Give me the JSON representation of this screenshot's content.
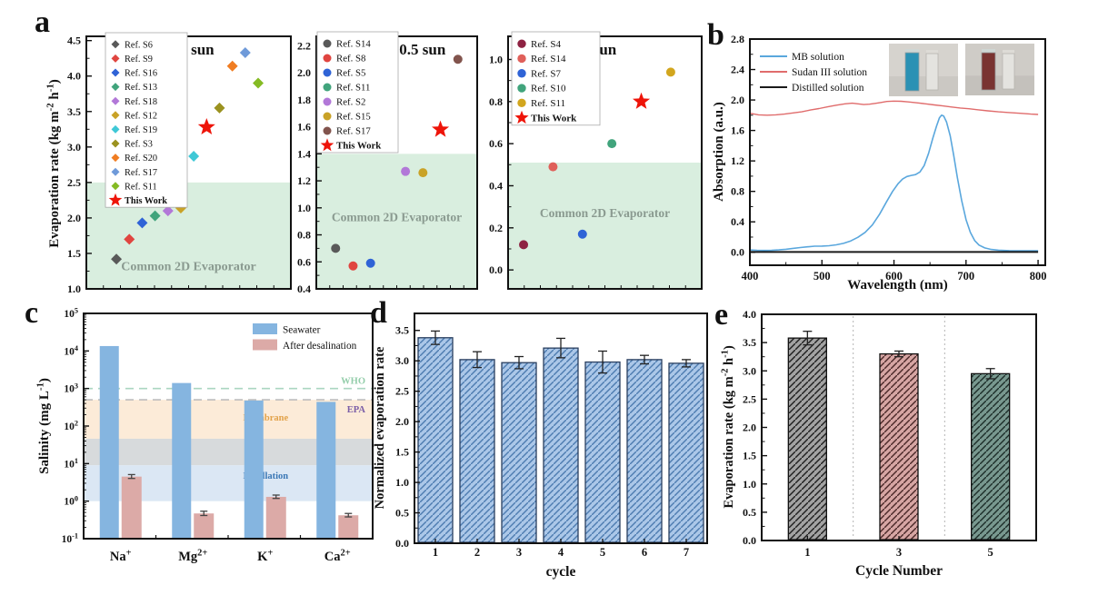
{
  "panel_letters": {
    "a": "a",
    "b": "b",
    "c": "c",
    "d": "d",
    "e": "e"
  },
  "chart_data": [
    {
      "id": "a1",
      "type": "scatter",
      "title": "1 sun",
      "ylabel_parts": [
        {
          "t": "Evaporation rate (kg m"
        },
        {
          "sup": "-2"
        },
        {
          "t": " h"
        },
        {
          "sup": "-1"
        },
        {
          "t": ")"
        }
      ],
      "ylim": [
        1.0,
        4.56
      ],
      "yticks": {
        "min": 1.0,
        "max": 4.5,
        "step": 0.5,
        "minor": 0.25,
        "decimals": 1
      },
      "marker": "diamond",
      "region": {
        "label": "Common 2D Evaporator",
        "top": 2.5,
        "color": "#d9eedf",
        "text_color": "#8a9a90",
        "label_y": 1.26,
        "label_size": 14
      },
      "points": [
        {
          "name": "Ref. S6",
          "color": "#595959",
          "y": 1.42
        },
        {
          "name": "Ref. S9",
          "color": "#e04540",
          "y": 1.7
        },
        {
          "name": "Ref. S16",
          "color": "#2f63d6",
          "y": 1.93
        },
        {
          "name": "Ref. S13",
          "color": "#41a47c",
          "y": 2.03
        },
        {
          "name": "Ref. S18",
          "color": "#b278d8",
          "y": 2.1
        },
        {
          "name": "Ref. S12",
          "color": "#c9a227",
          "y": 2.14
        },
        {
          "name": "Ref. S19",
          "color": "#3fc8d6",
          "y": 2.87
        },
        {
          "name": "This Work",
          "color": "#ee1409",
          "y": 3.28,
          "marker": "star"
        },
        {
          "name": "Ref. S3",
          "color": "#9b9220",
          "y": 3.55
        },
        {
          "name": "Ref. S20",
          "color": "#f07d22",
          "y": 4.14
        },
        {
          "name": "Ref. S17",
          "color": "#6f9ad9",
          "y": 4.33
        },
        {
          "name": "Ref. S11",
          "color": "#85bb24",
          "y": 3.9
        }
      ],
      "legend_order": [
        0,
        1,
        2,
        3,
        4,
        5,
        6,
        8,
        9,
        10,
        11,
        7
      ]
    },
    {
      "id": "a2",
      "type": "scatter",
      "title": "0.5 sun",
      "ylim": [
        0.4,
        2.27
      ],
      "yticks": {
        "min": 0.4,
        "max": 2.2,
        "step": 0.2,
        "minor": 0.1,
        "decimals": 1
      },
      "marker": "circle",
      "region": {
        "label": "Common 2D Evaporator",
        "top": 1.4,
        "color": "#d9eedf",
        "text_color": "#8a9a90",
        "label_y": 0.9,
        "label_size": 13.5
      },
      "points": [
        {
          "name": "Ref. S14",
          "color": "#595959",
          "y": 0.7
        },
        {
          "name": "Ref. S8",
          "color": "#e04540",
          "y": 0.57
        },
        {
          "name": "Ref. S5",
          "color": "#2f63d6",
          "y": 0.59
        },
        {
          "name": "Ref. S11",
          "color": "#41a47c",
          "y": 1.74
        },
        {
          "name": "Ref. S2",
          "color": "#b278d8",
          "y": 1.27
        },
        {
          "name": "Ref. S15",
          "color": "#c9a227",
          "y": 1.26
        },
        {
          "name": "This Work",
          "color": "#ee1409",
          "y": 1.58,
          "marker": "star"
        },
        {
          "name": "Ref. S17",
          "color": "#82544d",
          "y": 2.1
        }
      ],
      "legend_order": [
        0,
        1,
        2,
        3,
        4,
        5,
        7,
        6
      ]
    },
    {
      "id": "a3",
      "type": "scatter",
      "title": "0 sun",
      "ylim": [
        -0.09,
        1.11
      ],
      "yticks": {
        "min": 0.0,
        "max": 1.0,
        "step": 0.2,
        "minor": 0.1,
        "decimals": 1
      },
      "marker": "circle",
      "region": {
        "label": "Common 2D Evaporator",
        "top": 0.51,
        "color": "#d9eedf",
        "text_color": "#8a9a90",
        "label_y": 0.25,
        "label_size": 13.5
      },
      "points": [
        {
          "name": "Ref. S4",
          "color": "#8e2242",
          "y": 0.12
        },
        {
          "name": "Ref. S14",
          "color": "#e0605a",
          "y": 0.49
        },
        {
          "name": "Ref. S7",
          "color": "#2f63d6",
          "y": 0.17
        },
        {
          "name": "Ref. S10",
          "color": "#41a47c",
          "y": 0.6
        },
        {
          "name": "This Work",
          "color": "#ee1409",
          "y": 0.8,
          "marker": "star"
        },
        {
          "name": "Ref. S11",
          "color": "#d2a61e",
          "y": 0.94
        }
      ],
      "legend_order": [
        0,
        1,
        2,
        3,
        5,
        4
      ]
    },
    {
      "id": "b",
      "type": "line",
      "xlabel": "Wavelength (nm)",
      "ylabel_parts": [
        {
          "t": "Absorption (a.u.)"
        }
      ],
      "xlim": [
        400,
        810
      ],
      "ylim": [
        -0.17,
        2.8
      ],
      "xticks": {
        "min": 400,
        "max": 800,
        "step": 100,
        "minor": 50,
        "decimals": 0
      },
      "yticks": {
        "min": 0.0,
        "max": 2.8,
        "step": 0.4,
        "minor": 0.2,
        "decimals": 1
      },
      "series": [
        {
          "name": "MB solution",
          "color": "#5aa7dd",
          "width": 1.6,
          "points": [
            [
              400,
              0.03
            ],
            [
              410,
              0.026
            ],
            [
              420,
              0.024
            ],
            [
              430,
              0.026
            ],
            [
              440,
              0.032
            ],
            [
              450,
              0.04
            ],
            [
              460,
              0.052
            ],
            [
              470,
              0.063
            ],
            [
              480,
              0.072
            ],
            [
              490,
              0.08
            ],
            [
              500,
              0.082
            ],
            [
              510,
              0.086
            ],
            [
              520,
              0.098
            ],
            [
              530,
              0.118
            ],
            [
              540,
              0.15
            ],
            [
              550,
              0.197
            ],
            [
              560,
              0.262
            ],
            [
              570,
              0.36
            ],
            [
              580,
              0.5
            ],
            [
              590,
              0.668
            ],
            [
              598,
              0.8
            ],
            [
              606,
              0.905
            ],
            [
              612,
              0.962
            ],
            [
              618,
              0.995
            ],
            [
              624,
              1.01
            ],
            [
              630,
              1.02
            ],
            [
              636,
              1.055
            ],
            [
              642,
              1.14
            ],
            [
              648,
              1.3
            ],
            [
              654,
              1.5
            ],
            [
              659,
              1.655
            ],
            [
              663,
              1.765
            ],
            [
              666,
              1.8
            ],
            [
              669,
              1.79
            ],
            [
              673,
              1.71
            ],
            [
              678,
              1.53
            ],
            [
              683,
              1.27
            ],
            [
              688,
              0.98
            ],
            [
              694,
              0.68
            ],
            [
              700,
              0.43
            ],
            [
              706,
              0.26
            ],
            [
              712,
              0.155
            ],
            [
              718,
              0.095
            ],
            [
              726,
              0.058
            ],
            [
              735,
              0.038
            ],
            [
              745,
              0.028
            ],
            [
              760,
              0.022
            ],
            [
              780,
              0.02
            ],
            [
              800,
              0.02
            ]
          ]
        },
        {
          "name": "Sudan III solution",
          "color": "#e06c6c",
          "width": 1.4,
          "points": [
            [
              400,
              1.825
            ],
            [
              412,
              1.805
            ],
            [
              424,
              1.8
            ],
            [
              436,
              1.805
            ],
            [
              448,
              1.815
            ],
            [
              460,
              1.83
            ],
            [
              472,
              1.845
            ],
            [
              484,
              1.868
            ],
            [
              496,
              1.888
            ],
            [
              508,
              1.91
            ],
            [
              520,
              1.932
            ],
            [
              532,
              1.95
            ],
            [
              542,
              1.958
            ],
            [
              550,
              1.95
            ],
            [
              558,
              1.94
            ],
            [
              566,
              1.945
            ],
            [
              574,
              1.955
            ],
            [
              582,
              1.968
            ],
            [
              590,
              1.98
            ],
            [
              600,
              1.985
            ],
            [
              610,
              1.983
            ],
            [
              620,
              1.975
            ],
            [
              632,
              1.963
            ],
            [
              644,
              1.95
            ],
            [
              656,
              1.935
            ],
            [
              668,
              1.922
            ],
            [
              680,
              1.908
            ],
            [
              692,
              1.895
            ],
            [
              704,
              1.885
            ],
            [
              716,
              1.872
            ],
            [
              730,
              1.858
            ],
            [
              745,
              1.845
            ],
            [
              760,
              1.835
            ],
            [
              775,
              1.825
            ],
            [
              790,
              1.815
            ],
            [
              800,
              1.81
            ]
          ]
        },
        {
          "name": "Distilled solution",
          "color": "#1a1a1a",
          "width": 2.0,
          "points": [
            [
              400,
              0.004
            ],
            [
              800,
              0.004
            ]
          ]
        }
      ],
      "insets": [
        {
          "bg": "#d6d3ce",
          "cuvette_color": "#2b91b4"
        },
        {
          "bg": "#cfccc7",
          "cuvette_color": "#793331"
        }
      ]
    },
    {
      "id": "c",
      "type": "logbar",
      "ylabel_parts": [
        {
          "t": "Salinity (mg L"
        },
        {
          "sup": "-1"
        },
        {
          "t": ")"
        }
      ],
      "ylim_exp": [
        -1,
        5
      ],
      "categories": [
        [
          {
            "t": "Na"
          },
          {
            "sup": "+"
          }
        ],
        [
          {
            "t": "Mg"
          },
          {
            "sup": "2+"
          }
        ],
        [
          {
            "t": "K"
          },
          {
            "sup": "+"
          }
        ],
        [
          {
            "t": "Ca"
          },
          {
            "sup": "2+"
          }
        ]
      ],
      "series": [
        {
          "name": "Seawater",
          "color": "#85b5e0",
          "values": [
            13500,
            1400,
            480,
            440
          ]
        },
        {
          "name": "After desalination",
          "color": "#dcaaa7",
          "values": [
            4.5,
            0.47,
            1.3,
            0.42
          ],
          "errors": [
            0.6,
            0.07,
            0.15,
            0.05
          ]
        }
      ],
      "guides": [
        {
          "label": "WHO",
          "value": 1000,
          "line_color": "#aad6c0",
          "text_color": "#93cdaa"
        },
        {
          "label": "EPA",
          "value": 500,
          "line_color": "#bdbdbd",
          "text_color": "#7b5ea7"
        }
      ],
      "bands": [
        {
          "label": "Membrane",
          "from": 46,
          "to": 500,
          "color": "#fcebd8",
          "text_color": "#e2a24a",
          "label_at": 140,
          "label_fx": 0.63
        },
        {
          "label": "",
          "from": 9,
          "to": 46,
          "color": "#d7dadc",
          "text_color": "#888888",
          "label_at": 20,
          "label_fx": 0.5
        },
        {
          "label": "Distillation",
          "from": 1,
          "to": 9,
          "color": "#dbe7f4",
          "text_color": "#3a77b5",
          "label_at": 4,
          "label_fx": 0.63
        }
      ]
    },
    {
      "id": "d",
      "type": "bar",
      "xlabel": "cycle",
      "ylabel_parts": [
        {
          "t": "Normalized evaporation rate"
        }
      ],
      "categories": [
        "1",
        "2",
        "3",
        "4",
        "5",
        "6",
        "7"
      ],
      "x_positions": [
        1,
        2,
        3,
        4,
        5,
        6,
        7
      ],
      "x_range": [
        0.5,
        7.5
      ],
      "values": [
        3.38,
        3.02,
        2.97,
        3.21,
        2.98,
        3.02,
        2.96
      ],
      "errors": [
        0.11,
        0.13,
        0.1,
        0.16,
        0.18,
        0.07,
        0.06
      ],
      "ylim": [
        0,
        3.78
      ],
      "yticks": {
        "min": 0.0,
        "max": 3.5,
        "step": 0.5,
        "minor": 0.25,
        "decimals": 1
      },
      "bar_styles": [
        {
          "fill": "#abc7e8",
          "hatch": "#4d7cb0",
          "edge": "#2a3f5f"
        }
      ],
      "separators": []
    },
    {
      "id": "e",
      "type": "bar",
      "xlabel": "Cycle Number",
      "ylabel_parts": [
        {
          "t": "Evaporation rate (kg m"
        },
        {
          "sup": "-2"
        },
        {
          "t": " h"
        },
        {
          "sup": "-1"
        },
        {
          "t": ")"
        }
      ],
      "categories": [
        "1",
        "3",
        "5"
      ],
      "x_positions": [
        1,
        3,
        5
      ],
      "x_range": [
        0,
        6
      ],
      "values": [
        3.58,
        3.3,
        2.95
      ],
      "errors": [
        0.12,
        0.05,
        0.09
      ],
      "ylim": [
        0,
        4.0
      ],
      "yticks": {
        "min": 0.0,
        "max": 4.0,
        "step": 0.5,
        "minor": 0.25,
        "decimals": 1
      },
      "bar_styles": [
        {
          "fill": "#a2a2a2",
          "hatch": "#1f1f1f",
          "edge": "#111111"
        },
        {
          "fill": "#d6a5a3",
          "hatch": "#4a2828",
          "edge": "#111111"
        },
        {
          "fill": "#78988f",
          "hatch": "#1d2e2a",
          "edge": "#111111"
        }
      ],
      "separators": [
        2,
        4
      ]
    }
  ]
}
